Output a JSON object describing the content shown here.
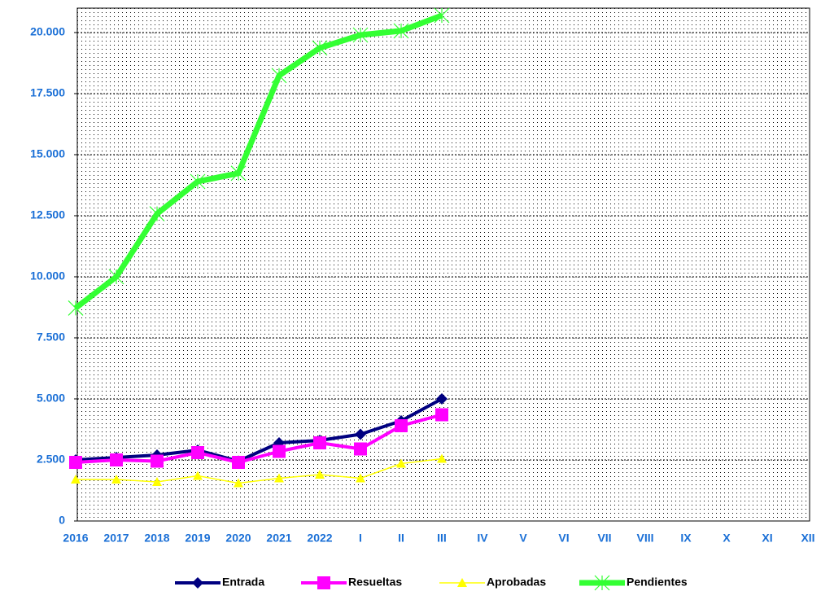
{
  "chart_data": {
    "type": "line",
    "categories": [
      "2016",
      "2017",
      "2018",
      "2019",
      "2020",
      "2021",
      "2022",
      "I",
      "II",
      "III",
      "IV",
      "V",
      "VI",
      "VII",
      "VIII",
      "IX",
      "X",
      "XI",
      "XII"
    ],
    "series": [
      {
        "name": "Entrada",
        "color": "#000080",
        "marker": "diamond",
        "values": [
          2500,
          2600,
          2700,
          2900,
          2450,
          3200,
          3300,
          3550,
          4100,
          5000,
          null,
          null,
          null,
          null,
          null,
          null,
          null,
          null,
          null
        ]
      },
      {
        "name": "Resueltas",
        "color": "#ff00ff",
        "marker": "square",
        "values": [
          2400,
          2500,
          2450,
          2800,
          2400,
          2850,
          3200,
          2950,
          3900,
          4350,
          null,
          null,
          null,
          null,
          null,
          null,
          null,
          null,
          null
        ]
      },
      {
        "name": "Aprobadas",
        "color": "#ffff00",
        "marker": "triangle",
        "values": [
          1700,
          1700,
          1600,
          1850,
          1550,
          1750,
          1900,
          1750,
          2350,
          2550,
          null,
          null,
          null,
          null,
          null,
          null,
          null,
          null,
          null
        ]
      },
      {
        "name": "Pendientes",
        "color": "#33ff33",
        "marker": "star",
        "values": [
          8720,
          10000,
          12580,
          13900,
          14240,
          18240,
          19370,
          19900,
          20070,
          20700,
          null,
          null,
          null,
          null,
          null,
          null,
          null,
          null,
          null
        ]
      }
    ],
    "ylim": [
      0,
      21000
    ],
    "yticks": [
      0,
      {
        "value": 2500,
        "label": "2.500"
      },
      {
        "value": 5000,
        "label": "5.000"
      },
      {
        "value": 7500,
        "label": "7.500"
      },
      {
        "value": 10000,
        "label": "10.000"
      },
      {
        "value": 12500,
        "label": "12.500"
      },
      {
        "value": 15000,
        "label": "15.000"
      },
      {
        "value": 17500,
        "label": "17.500"
      },
      {
        "value": 20000,
        "label": "20.000"
      }
    ],
    "grid": true,
    "legend": "bottom"
  }
}
